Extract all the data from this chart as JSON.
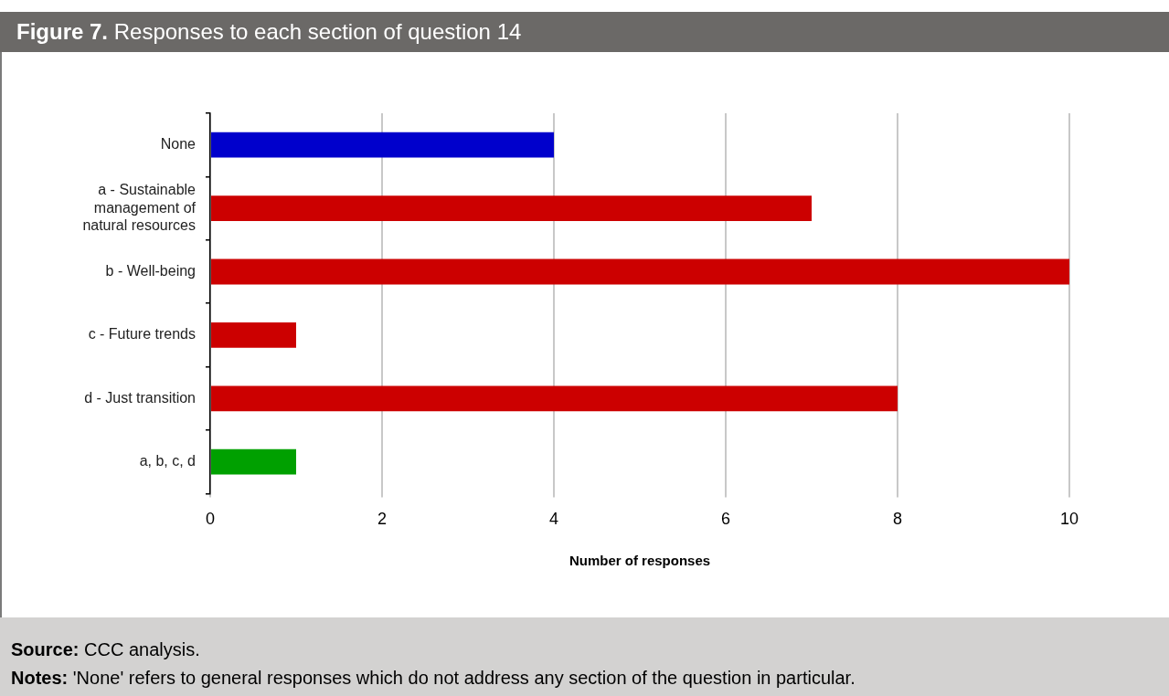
{
  "chart_data": {
    "type": "bar",
    "orientation": "horizontal",
    "title": "Figure 7. Responses to each section of question 14",
    "xlabel": "Number of responses",
    "categories": [
      "None",
      "a - Sustainable management of natural resources",
      "b - Well-being",
      "c - Future trends",
      "d - Just transition",
      "a, b, c, d"
    ],
    "values": [
      4,
      7,
      10,
      1,
      8,
      1
    ],
    "colors": [
      "#0000cc",
      "#cc0000",
      "#cc0000",
      "#cc0000",
      "#cc0000",
      "#00a000"
    ],
    "xlim": [
      0,
      10
    ],
    "xticks": [
      0,
      2,
      4,
      6,
      8,
      10
    ],
    "grid": "x",
    "legend": false,
    "annotations": [
      "Source: CCC analysis.",
      "Notes: 'None' refers to general responses which do not address any section of the question in particular."
    ]
  }
}
